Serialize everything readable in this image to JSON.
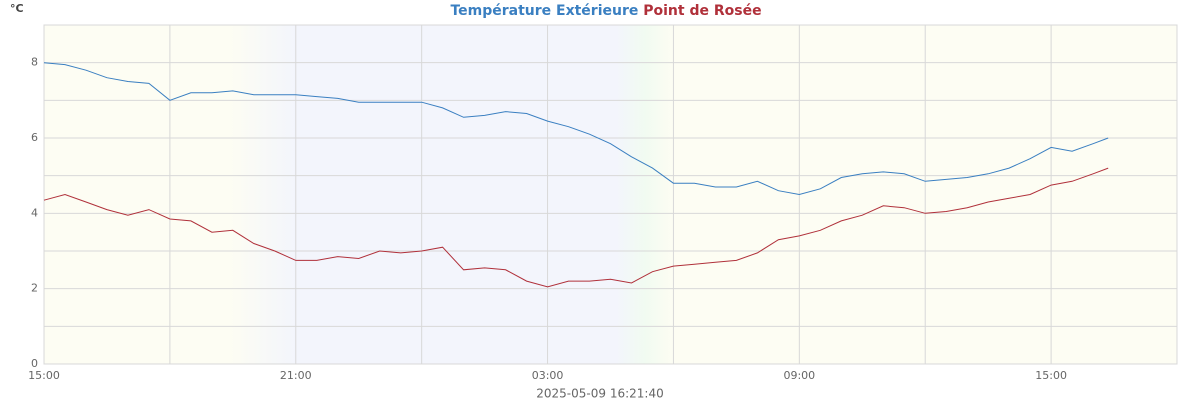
{
  "chart_data": {
    "type": "line",
    "y_label": "°C",
    "annotation": "2025-05-09 16:21:40",
    "x": [
      0,
      0.5,
      1,
      1.5,
      2,
      2.5,
      3,
      3.5,
      4,
      4.5,
      5,
      5.5,
      6,
      6.5,
      7,
      7.5,
      8,
      8.5,
      9,
      9.5,
      10,
      10.5,
      11,
      11.5,
      12,
      12.5,
      13,
      13.5,
      14,
      14.5,
      15,
      15.5,
      16,
      16.5,
      17,
      17.5,
      18,
      18.5,
      19,
      19.5,
      20,
      20.5,
      21,
      21.5,
      22,
      22.5,
      23,
      23.5,
      24,
      24.5,
      25,
      25.36
    ],
    "series": [
      {
        "name": "Température Extérieure",
        "color": "#3a7fc1",
        "values": [
          8.0,
          7.95,
          7.8,
          7.6,
          7.5,
          7.45,
          7.0,
          7.2,
          7.2,
          7.25,
          7.15,
          7.15,
          7.15,
          7.1,
          7.05,
          6.95,
          6.95,
          6.95,
          6.95,
          6.8,
          6.55,
          6.6,
          6.7,
          6.65,
          6.45,
          6.3,
          6.1,
          5.85,
          5.5,
          5.2,
          4.8,
          4.8,
          4.7,
          4.7,
          4.85,
          4.6,
          4.5,
          4.65,
          4.95,
          5.05,
          5.1,
          5.05,
          4.85,
          4.9,
          4.95,
          5.05,
          5.2,
          5.45,
          5.75,
          5.65,
          5.85,
          6.0
        ]
      },
      {
        "name": "Point de Rosée",
        "color": "#b0303a",
        "values": [
          4.35,
          4.5,
          4.3,
          4.1,
          3.95,
          4.1,
          3.85,
          3.8,
          3.5,
          3.55,
          3.2,
          3.0,
          2.75,
          2.75,
          2.85,
          2.8,
          3.0,
          2.95,
          3.0,
          3.1,
          2.5,
          2.55,
          2.5,
          2.2,
          2.05,
          2.2,
          2.2,
          2.25,
          2.15,
          2.45,
          2.6,
          2.65,
          2.7,
          2.75,
          2.95,
          3.3,
          3.4,
          3.55,
          3.8,
          3.95,
          4.2,
          4.15,
          4.0,
          4.05,
          4.15,
          4.3,
          4.4,
          4.5,
          4.75,
          4.85,
          5.05,
          5.2
        ]
      }
    ],
    "xlim": [
      0,
      27
    ],
    "xticks": [
      {
        "value": 0,
        "label": "15:00"
      },
      {
        "value": 6,
        "label": "21:00"
      },
      {
        "value": 12,
        "label": "03:00"
      },
      {
        "value": 18,
        "label": "09:00"
      },
      {
        "value": 24,
        "label": "15:00"
      }
    ],
    "ylim": [
      0,
      9
    ],
    "yticks": [
      0,
      2,
      4,
      6,
      8
    ],
    "grid": true
  }
}
